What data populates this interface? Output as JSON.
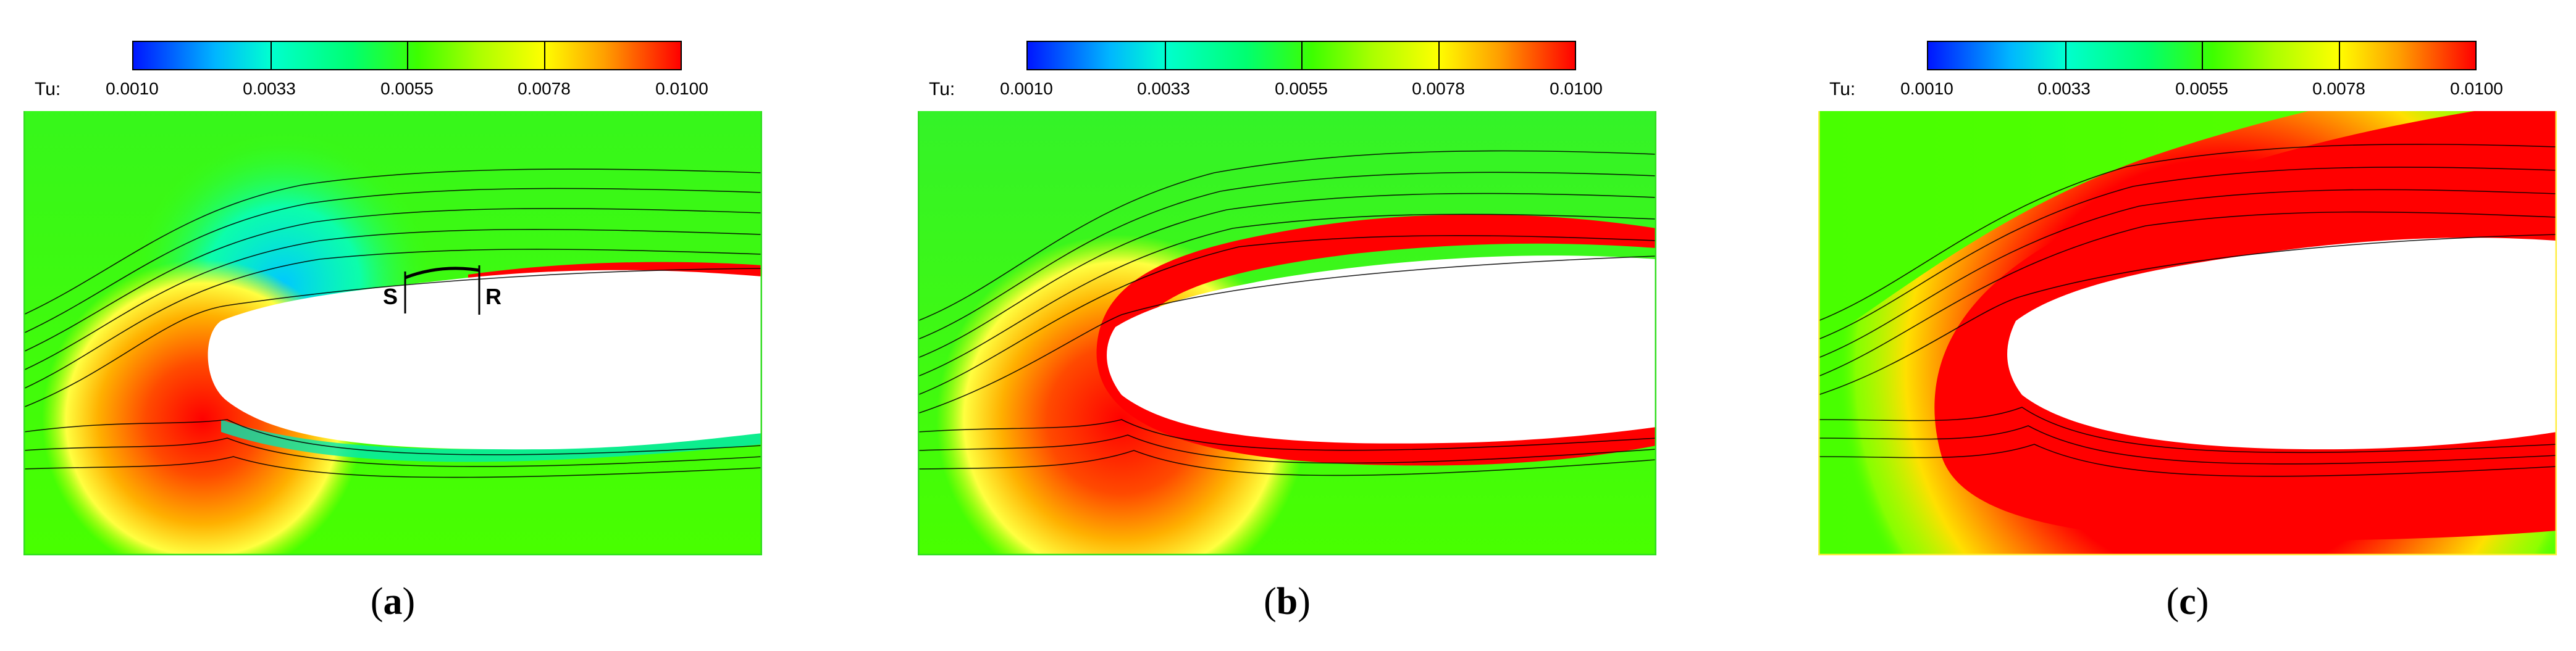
{
  "colorbar": {
    "variable": "Tu:",
    "ticks": [
      "0.0010",
      "0.0033",
      "0.0055",
      "0.0078",
      "0.0100"
    ],
    "colors": [
      "#0016ff",
      "#00b6ff",
      "#00ffd0",
      "#3dff00",
      "#ffff00",
      "#ff0000"
    ]
  },
  "panels": [
    {
      "id": "a",
      "caption_open": "(",
      "caption_letter": "a",
      "caption_close": ")",
      "annotations": {
        "separation": "S",
        "reattachment": "R"
      },
      "colors": {
        "background": "#3dff00",
        "turbulent": "#ff0000",
        "low": "#00c8ff"
      }
    },
    {
      "id": "b",
      "caption_open": "(",
      "caption_letter": "b",
      "caption_close": ")",
      "colors": {
        "background": "#3dff00",
        "turbulent": "#ff0000"
      }
    },
    {
      "id": "c",
      "caption_open": "(",
      "caption_letter": "c",
      "caption_close": ")",
      "colors": {
        "background": "#3dff00",
        "turbulent": "#ff0000"
      }
    }
  ]
}
